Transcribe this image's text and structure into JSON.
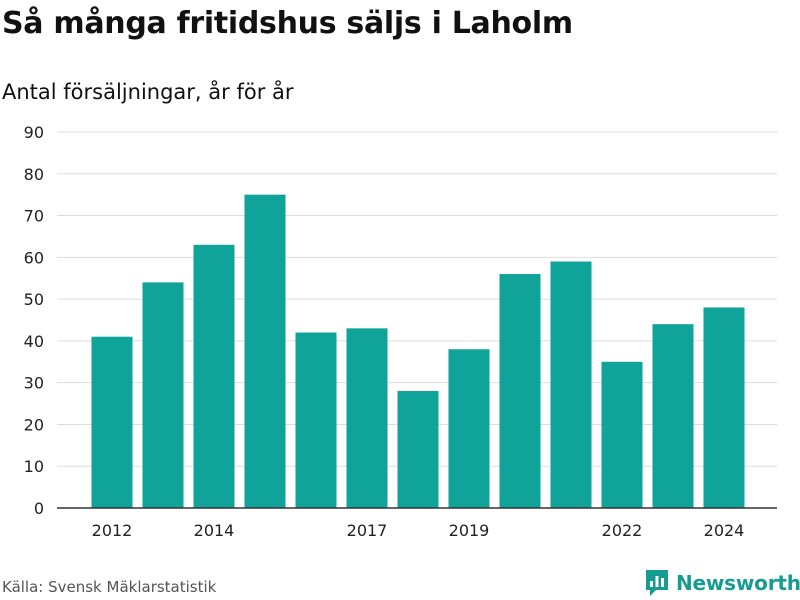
{
  "title": "Så många fritidshus säljs i Laholm",
  "subtitle": "Antal försäljningar, år för år",
  "source": "Källa: Svensk Mäklarstatistik",
  "brand": {
    "name": "Newsworthy",
    "icon": "newsworthy-logo-icon"
  },
  "colors": {
    "bar": "#0fa39a",
    "grid": "#dddddd",
    "axis": "#333333",
    "brand": "#179c91"
  },
  "chart_data": {
    "type": "bar",
    "x": [
      2012,
      2013,
      2014,
      2015,
      2016,
      2017,
      2018,
      2019,
      2020,
      2021,
      2022,
      2023,
      2024
    ],
    "values": [
      41,
      54,
      63,
      75,
      42,
      43,
      28,
      38,
      56,
      59,
      35,
      44,
      48
    ],
    "x_tick_labels": [
      "2012",
      "2014",
      "2017",
      "2019",
      "2022",
      "2024"
    ],
    "y_ticks": [
      0,
      10,
      20,
      30,
      40,
      50,
      60,
      70,
      80,
      90
    ],
    "ylim": [
      0,
      90
    ],
    "grid": true
  }
}
